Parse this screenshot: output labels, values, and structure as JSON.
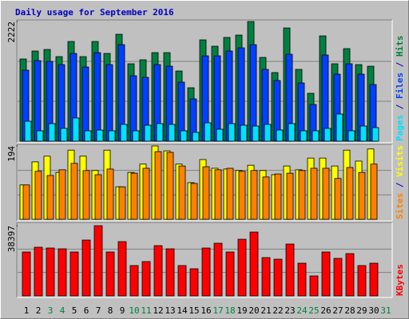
{
  "chart_data": {
    "type": "bar",
    "title": "Daily usage for September 2016",
    "categories": [
      "1",
      "2",
      "3",
      "4",
      "5",
      "6",
      "7",
      "8",
      "9",
      "10",
      "11",
      "12",
      "13",
      "14",
      "15",
      "16",
      "17",
      "18",
      "19",
      "20",
      "21",
      "22",
      "23",
      "24",
      "25",
      "26",
      "27",
      "28",
      "29",
      "30",
      "31"
    ],
    "category_colors": [
      "#000000",
      "#000000",
      "#008040",
      "#008040",
      "#000000",
      "#000000",
      "#000000",
      "#000000",
      "#000000",
      "#008040",
      "#008040",
      "#000000",
      "#000000",
      "#000000",
      "#000000",
      "#000000",
      "#008040",
      "#008040",
      "#000000",
      "#000000",
      "#000000",
      "#000000",
      "#000000",
      "#008040",
      "#008040",
      "#000000",
      "#000000",
      "#000000",
      "#000000",
      "#000000",
      "#008040"
    ],
    "legend_separator": " / ",
    "grid_divisions": 3,
    "panels": [
      {
        "ylim": [
          0,
          2222
        ],
        "yticks": [
          2222
        ],
        "series": [
          {
            "name": "Pages",
            "color": "#00E0FF",
            "values": [
              370,
              193,
              326,
              237,
              430,
              193,
              207,
              193,
              311,
              193,
              296,
              326,
              311,
              193,
              163,
              341,
              222,
              326,
              296,
              281,
              311,
              207,
              326,
              193,
              193,
              237,
              504,
              193,
              281,
              252,
              null
            ]
          },
          {
            "name": "Files",
            "color": "#0040FF",
            "values": [
              1318,
              1496,
              1481,
              1422,
              1629,
              1377,
              1644,
              1422,
              1792,
              1214,
              1185,
              1422,
              1392,
              1096,
              785,
              1585,
              1585,
              1674,
              1733,
              1792,
              1333,
              1126,
              1614,
              1081,
              681,
              1600,
              1244,
              1437,
              1244,
              1052,
              null
            ]
          },
          {
            "name": "Hits",
            "color": "#008040",
            "values": [
              1526,
              1674,
              1703,
              1570,
              1851,
              1570,
              1851,
              1629,
              1985,
              1437,
              1511,
              1644,
              1644,
              1303,
              992,
              1881,
              1763,
              1926,
              1970,
              2222,
              1555,
              1274,
              2103,
              1333,
              889,
              1955,
              1437,
              1718,
              1422,
              1392,
              null
            ]
          }
        ]
      },
      {
        "ylim": [
          0,
          194
        ],
        "yticks": [
          194
        ],
        "series": [
          {
            "name": "Sites",
            "color": "#FF8000",
            "values": [
              91,
              127,
              116,
              131,
              148,
              129,
              118,
              133,
              86,
              122,
              135,
              179,
              177,
              141,
              95,
              139,
              131,
              135,
              127,
              129,
              112,
              120,
              122,
              129,
              135,
              135,
              108,
              137,
              124,
              146,
              null
            ]
          },
          {
            "name": "Visits",
            "color": "#FFFF00",
            "values": [
              91,
              152,
              167,
              124,
              183,
              167,
              129,
              183,
              86,
              124,
              146,
              194,
              181,
              146,
              97,
              158,
              135,
              133,
              129,
              143,
              129,
              118,
              141,
              131,
              162,
              162,
              141,
              183,
              154,
              186,
              null
            ]
          }
        ]
      },
      {
        "ylim": [
          0,
          38397
        ],
        "yticks": [
          38397
        ],
        "series": [
          {
            "name": "KBytes",
            "color": "#FF0000",
            "values": [
              23997,
              26614,
              26178,
              25742,
              23997,
              30541,
              38397,
              23997,
              29668,
              16579,
              18761,
              27487,
              25742,
              16579,
              14834,
              26178,
              28796,
              23997,
              30977,
              34904,
              20942,
              20070,
              28360,
              17888,
              10908,
              23997,
              20506,
              23124,
              16579,
              17888,
              null
            ]
          }
        ]
      }
    ]
  }
}
